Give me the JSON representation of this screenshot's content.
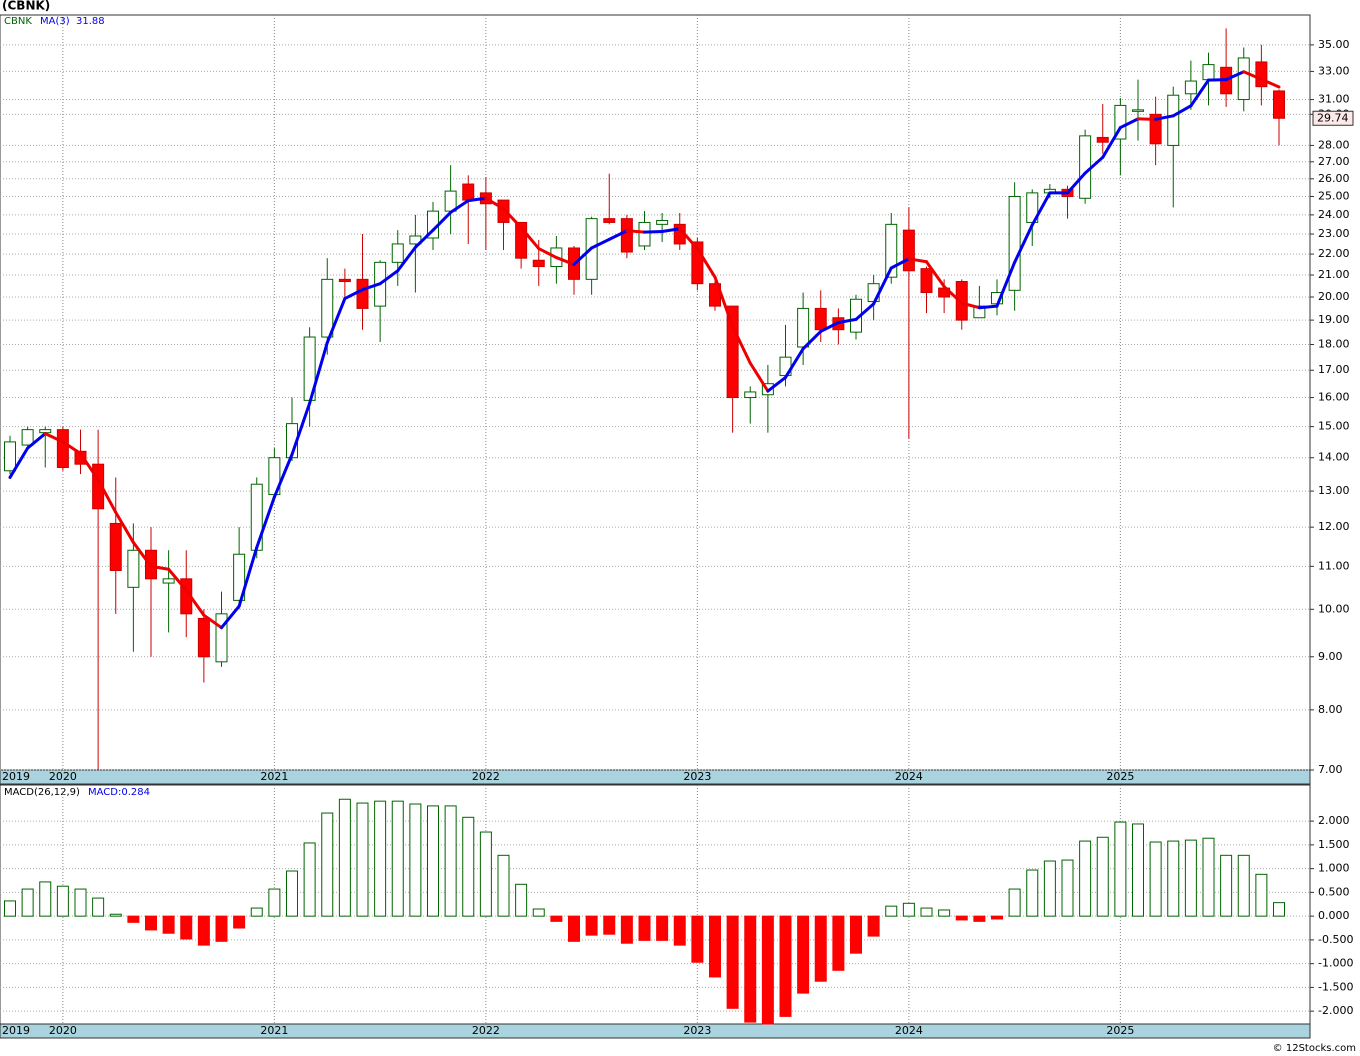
{
  "header": {
    "title": "(CBNK)"
  },
  "footer": "© 12Stocks.com",
  "chart_data": [
    {
      "type": "candlestick",
      "ticker": "CBNK",
      "log_scale": true,
      "grid": true,
      "up_color": "#ffffff",
      "up_edge": "#006400",
      "down_color": "#ff0000",
      "down_edge": "#cc0000",
      "categories": [
        "2019",
        null,
        null,
        "2020",
        null,
        null,
        null,
        null,
        null,
        null,
        null,
        null,
        null,
        null,
        null,
        "2021",
        null,
        null,
        null,
        null,
        null,
        null,
        null,
        null,
        null,
        null,
        null,
        "2022",
        null,
        null,
        null,
        null,
        null,
        null,
        null,
        null,
        null,
        null,
        null,
        "2023",
        null,
        null,
        null,
        null,
        null,
        null,
        null,
        null,
        null,
        null,
        null,
        "2024",
        null,
        null,
        null,
        null,
        null,
        null,
        null,
        null,
        null,
        null,
        null,
        "2025",
        null,
        null,
        null,
        null,
        null,
        null,
        null,
        null,
        null
      ],
      "open": [
        13.6,
        14.4,
        14.8,
        14.9,
        14.2,
        13.8,
        12.1,
        10.5,
        11.4,
        10.6,
        10.7,
        9.8,
        8.9,
        10.2,
        11.4,
        12.9,
        14.0,
        15.9,
        18.3,
        20.8,
        20.8,
        19.6,
        21.6,
        22.5,
        22.8,
        24.2,
        25.7,
        25.2,
        24.8,
        23.6,
        21.7,
        21.4,
        22.3,
        20.8,
        23.8,
        23.8,
        22.4,
        23.5,
        23.5,
        22.6,
        20.6,
        19.6,
        16.0,
        16.1,
        16.8,
        17.9,
        19.5,
        19.1,
        18.5,
        19.8,
        20.9,
        23.2,
        21.3,
        20.4,
        20.7,
        19.1,
        19.7,
        20.3,
        23.6,
        25.2,
        25.4,
        24.9,
        28.5,
        28.4,
        30.2,
        30.0,
        28.0,
        31.4,
        32.4,
        33.3,
        31.0,
        33.7,
        31.6
      ],
      "high": [
        14.7,
        15.0,
        15.0,
        15.0,
        14.9,
        14.9,
        13.4,
        12.1,
        12.0,
        11.4,
        11.4,
        10.0,
        10.4,
        12.0,
        13.4,
        14.3,
        16.0,
        18.7,
        21.8,
        21.3,
        23.0,
        21.7,
        23.2,
        24.0,
        24.7,
        26.8,
        26.2,
        26.1,
        24.8,
        23.6,
        22.7,
        22.9,
        22.4,
        23.9,
        26.3,
        24.0,
        24.2,
        24.1,
        24.1,
        22.8,
        20.8,
        19.6,
        16.4,
        17.2,
        18.8,
        20.2,
        20.3,
        19.5,
        20.1,
        21.0,
        24.1,
        24.4,
        21.4,
        20.8,
        20.8,
        20.5,
        20.8,
        25.8,
        25.4,
        25.7,
        25.6,
        29.0,
        30.7,
        31.1,
        32.4,
        31.2,
        31.9,
        33.8,
        34.4,
        36.3,
        34.8,
        35.0,
        31.7
      ],
      "low": [
        13.5,
        14.3,
        13.7,
        13.6,
        13.5,
        7.0,
        9.9,
        9.1,
        9.0,
        9.5,
        9.4,
        8.5,
        8.8,
        10.0,
        11.2,
        12.8,
        13.9,
        15.0,
        17.6,
        19.8,
        18.6,
        18.1,
        20.5,
        20.2,
        22.2,
        23.0,
        22.5,
        22.2,
        22.2,
        21.3,
        20.5,
        20.6,
        20.1,
        20.1,
        23.5,
        21.8,
        22.2,
        22.6,
        22.2,
        20.3,
        19.4,
        14.8,
        15.1,
        14.8,
        16.4,
        17.2,
        18.1,
        18.0,
        18.2,
        19.0,
        20.6,
        14.6,
        19.3,
        19.3,
        18.6,
        19.1,
        19.2,
        19.4,
        22.4,
        24.9,
        23.8,
        24.6,
        27.5,
        26.2,
        28.3,
        26.8,
        24.4,
        30.3,
        30.6,
        30.5,
        30.2,
        30.6,
        28.0
      ],
      "close": [
        14.5,
        14.9,
        14.9,
        13.7,
        13.8,
        12.5,
        10.9,
        11.4,
        10.7,
        10.7,
        9.9,
        9.0,
        9.9,
        11.3,
        13.2,
        14.0,
        15.1,
        18.3,
        20.8,
        20.7,
        19.5,
        21.6,
        22.5,
        22.9,
        24.2,
        25.3,
        24.8,
        24.6,
        23.6,
        21.8,
        21.4,
        22.3,
        20.8,
        23.8,
        23.6,
        22.1,
        23.6,
        23.7,
        22.5,
        20.6,
        19.6,
        16.0,
        16.2,
        16.5,
        17.5,
        19.5,
        18.6,
        18.6,
        19.9,
        20.6,
        23.5,
        21.2,
        20.2,
        20.0,
        19.0,
        19.6,
        20.2,
        25.0,
        25.2,
        25.4,
        25.0,
        28.6,
        28.2,
        30.6,
        30.3,
        28.1,
        31.3,
        32.3,
        33.5,
        31.4,
        34.0,
        31.9,
        29.74
      ],
      "last_close_label": "29.74",
      "ma": {
        "name": "MA(3)",
        "value_label": "31.88",
        "up_color": "#0000ee",
        "down_color": "#ee0000",
        "values": [
          13.4,
          14.3,
          14.77,
          14.5,
          14.13,
          13.33,
          12.4,
          11.6,
          11.0,
          10.93,
          10.43,
          9.87,
          9.6,
          10.07,
          11.47,
          12.83,
          14.1,
          15.8,
          18.07,
          19.93,
          20.33,
          20.6,
          21.2,
          22.33,
          23.2,
          24.13,
          24.77,
          24.9,
          24.33,
          23.33,
          22.27,
          21.83,
          21.5,
          22.3,
          22.73,
          23.17,
          23.1,
          23.13,
          23.27,
          22.27,
          20.9,
          18.73,
          17.27,
          16.23,
          16.73,
          17.83,
          18.53,
          18.9,
          19.03,
          19.7,
          21.33,
          21.77,
          21.63,
          20.47,
          19.73,
          19.53,
          19.6,
          21.6,
          23.47,
          25.2,
          25.2,
          26.33,
          27.27,
          29.13,
          29.7,
          29.67,
          29.9,
          30.57,
          32.37,
          32.4,
          32.97,
          32.43,
          31.88
        ]
      },
      "ylim": [
        7,
        37.4
      ],
      "yticks": [
        {
          "value": 7,
          "label": "7.00"
        },
        {
          "value": 8,
          "label": "8.00"
        },
        {
          "value": 9,
          "label": "9.00"
        },
        {
          "value": 10,
          "label": "10.00"
        },
        {
          "value": 11,
          "label": "11.00"
        },
        {
          "value": 12,
          "label": "12.00"
        },
        {
          "value": 13,
          "label": "13.00"
        },
        {
          "value": 14,
          "label": "14.00"
        },
        {
          "value": 15,
          "label": "15.00"
        },
        {
          "value": 16,
          "label": "16.00"
        },
        {
          "value": 17,
          "label": "17.00"
        },
        {
          "value": 18,
          "label": "18.00"
        },
        {
          "value": 19,
          "label": "19.00"
        },
        {
          "value": 20,
          "label": "20.00"
        },
        {
          "value": 21,
          "label": "21.00"
        },
        {
          "value": 22,
          "label": "22.00"
        },
        {
          "value": 23,
          "label": "23.00"
        },
        {
          "value": 24,
          "label": "24.00"
        },
        {
          "value": 25,
          "label": "25.00"
        },
        {
          "value": 26,
          "label": "26.00"
        },
        {
          "value": 27,
          "label": "27.00"
        },
        {
          "value": 28,
          "label": "28.00"
        },
        {
          "value": 30,
          "label": "30.00"
        },
        {
          "value": 31,
          "label": "31.00"
        },
        {
          "value": 33,
          "label": "33.00"
        },
        {
          "value": 35,
          "label": "35.00"
        }
      ]
    },
    {
      "type": "bar",
      "title": "MACD(26,12,9)",
      "legend_label": "MACD:0.284",
      "grid": true,
      "pos_edge": "#006400",
      "pos_fill": "#ffffff",
      "neg_color": "#ff0000",
      "values": [
        0.32,
        0.57,
        0.72,
        0.63,
        0.57,
        0.38,
        0.04,
        -0.13,
        -0.29,
        -0.36,
        -0.48,
        -0.61,
        -0.53,
        -0.25,
        0.17,
        0.57,
        0.95,
        1.54,
        2.17,
        2.46,
        2.38,
        2.42,
        2.42,
        2.36,
        2.32,
        2.32,
        2.08,
        1.77,
        1.28,
        0.67,
        0.15,
        -0.11,
        -0.53,
        -0.4,
        -0.38,
        -0.57,
        -0.51,
        -0.51,
        -0.61,
        -0.97,
        -1.28,
        -1.94,
        -2.23,
        -2.27,
        -2.11,
        -1.62,
        -1.37,
        -1.14,
        -0.78,
        -0.42,
        0.21,
        0.27,
        0.17,
        0.13,
        -0.08,
        -0.11,
        -0.06,
        0.57,
        0.97,
        1.16,
        1.18,
        1.58,
        1.66,
        1.98,
        1.94,
        1.56,
        1.58,
        1.6,
        1.64,
        1.28,
        1.28,
        0.88,
        0.284
      ],
      "ylim": [
        -2.27,
        2.76
      ],
      "yticks": [
        {
          "value": 2,
          "label": "2.000"
        },
        {
          "value": 1.5,
          "label": "1.500"
        },
        {
          "value": 1,
          "label": "1.000"
        },
        {
          "value": 0.5,
          "label": "0.500"
        },
        {
          "value": 0,
          "label": "0.000"
        },
        {
          "value": -0.5,
          "label": "-0.500"
        },
        {
          "value": -1,
          "label": "-1.000"
        },
        {
          "value": -1.5,
          "label": "-1.500"
        },
        {
          "value": -2,
          "label": "-2.000"
        }
      ]
    }
  ]
}
